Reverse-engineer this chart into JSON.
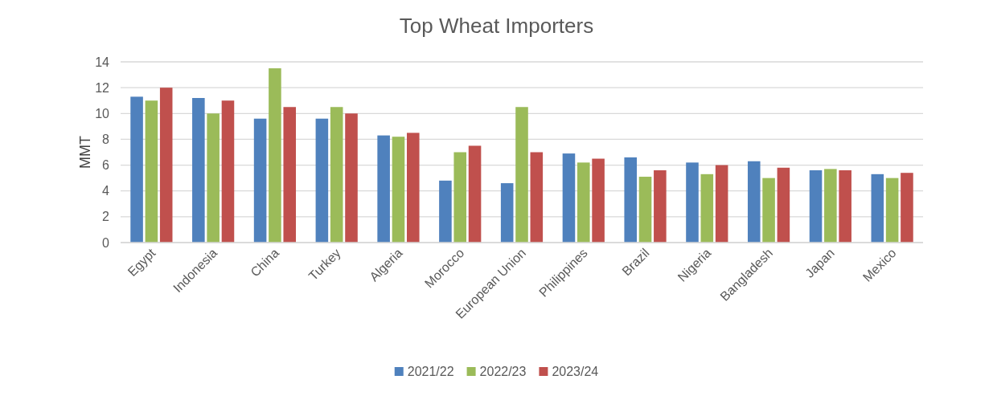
{
  "chart_data": {
    "type": "bar",
    "title": "Top Wheat Importers",
    "ylabel": "MMT",
    "categories": [
      "Egypt",
      "Indonesia",
      "China",
      "Turkey",
      "Algeria",
      "Morocco",
      "European Union",
      "Philippines",
      "Brazil",
      "Nigeria",
      "Bangladesh",
      "Japan",
      "Mexico"
    ],
    "series": [
      {
        "name": "2021/22",
        "color": "#4f81bd",
        "values": [
          11.3,
          11.2,
          9.6,
          9.6,
          8.3,
          4.8,
          4.6,
          6.9,
          6.6,
          6.2,
          6.3,
          5.6,
          5.3
        ]
      },
      {
        "name": "2022/23",
        "color": "#9bbb59",
        "values": [
          11,
          10,
          13.5,
          10.5,
          8.2,
          7,
          10.5,
          6.2,
          5.1,
          5.3,
          5,
          5.7,
          5
        ]
      },
      {
        "name": "2023/24",
        "color": "#c0504d",
        "values": [
          12,
          11,
          10.5,
          10,
          8.5,
          7.5,
          7,
          6.5,
          5.6,
          6,
          5.8,
          5.6,
          5.4
        ]
      }
    ],
    "ylim": [
      0,
      14
    ],
    "yticks": [
      0,
      2,
      4,
      6,
      8,
      10,
      12,
      14
    ],
    "grid": "y",
    "legend": "bottom"
  }
}
